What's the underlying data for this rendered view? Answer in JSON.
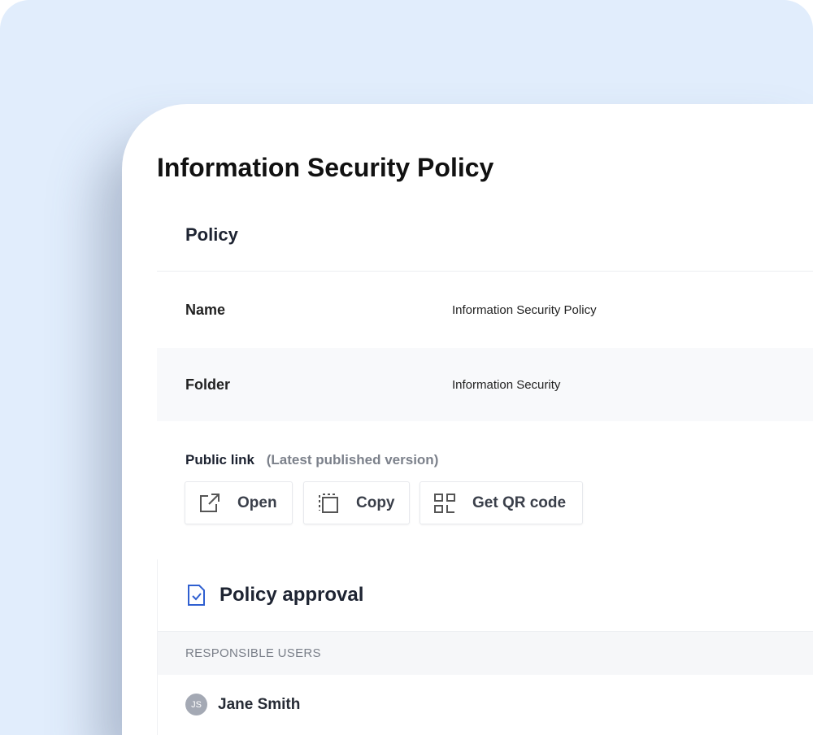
{
  "page": {
    "title": "Information Security Policy"
  },
  "policy": {
    "heading": "Policy",
    "fields": [
      {
        "label": "Name",
        "value": "Information Security Policy"
      },
      {
        "label": "Folder",
        "value": "Information Security"
      }
    ]
  },
  "public_link": {
    "label": "Public link",
    "note": "(Latest published version)",
    "buttons": [
      {
        "label": "Open",
        "icon": "external-link-icon"
      },
      {
        "label": "Copy",
        "icon": "copy-icon"
      },
      {
        "label": "Get QR code",
        "icon": "qr-code-icon"
      }
    ]
  },
  "approval": {
    "heading": "Policy approval",
    "icon": "document-check-icon",
    "column_header": "RESPONSIBLE USERS",
    "users": [
      {
        "initials": "JS",
        "name": "Jane Smith"
      }
    ]
  },
  "colors": {
    "background": "#e1edfc",
    "accent": "#2f5fd0",
    "avatar": "#a4a9b4"
  }
}
